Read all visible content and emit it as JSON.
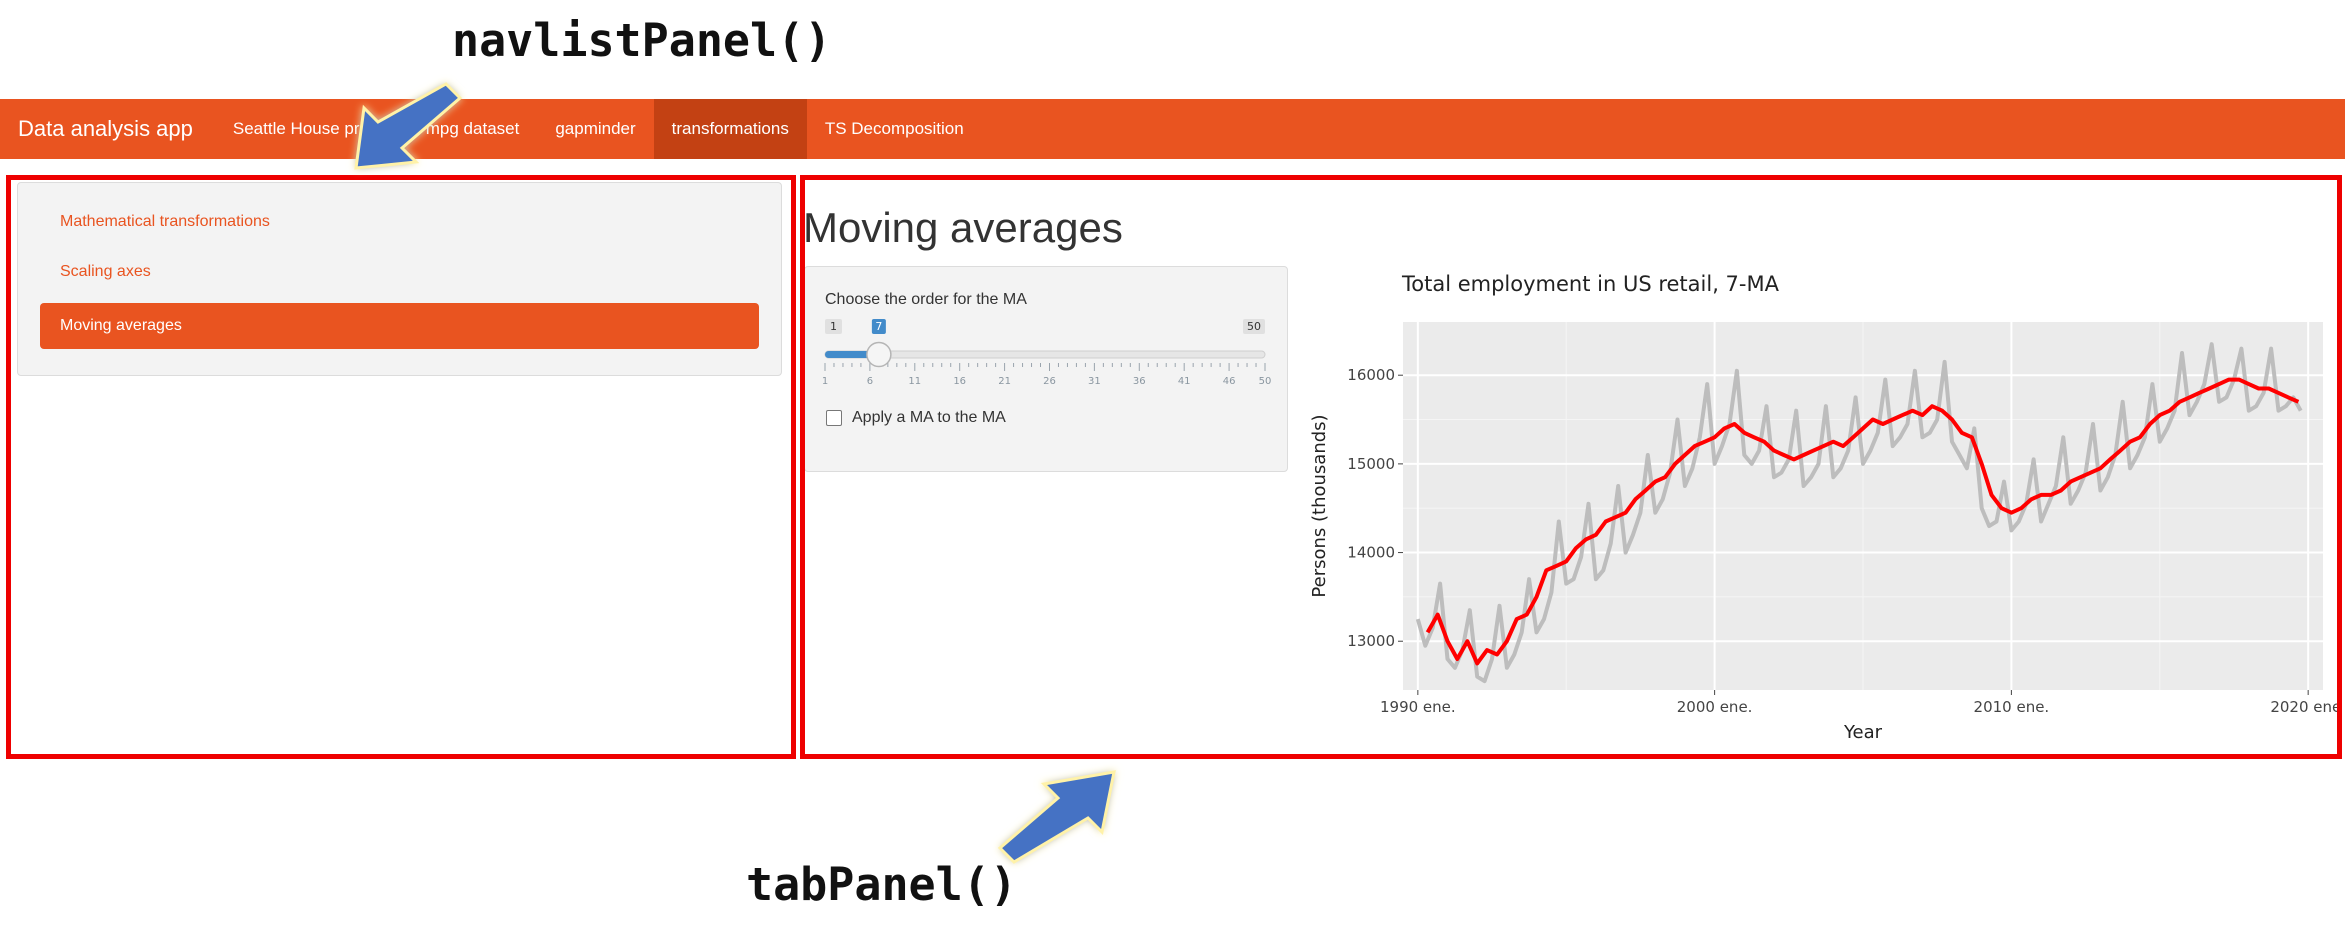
{
  "annotations": {
    "navlist_label": "navlistPanel()",
    "tabpanel_label": "tabPanel()"
  },
  "navbar": {
    "brand": "Data analysis app",
    "items": [
      {
        "label": "Seattle House prices",
        "active": false
      },
      {
        "label": "mpg dataset",
        "active": false
      },
      {
        "label": "gapminder",
        "active": false
      },
      {
        "label": "transformations",
        "active": true
      },
      {
        "label": "TS Decomposition",
        "active": false
      }
    ]
  },
  "navlist": {
    "items": [
      {
        "label": "Mathematical transformations",
        "active": false
      },
      {
        "label": "Scaling axes",
        "active": false
      },
      {
        "label": "Moving averages",
        "active": true
      }
    ]
  },
  "tab": {
    "title": "Moving averages",
    "slider": {
      "label": "Choose the order for the MA",
      "min": 1,
      "max": 50,
      "value": 7,
      "min_label": "1",
      "max_label": "50",
      "value_label": "7",
      "ticks": [
        "1",
        "6",
        "11",
        "16",
        "21",
        "26",
        "31",
        "36",
        "41",
        "46",
        "50"
      ]
    },
    "checkbox": {
      "label": "Apply a MA to the MA",
      "checked": false
    }
  },
  "colors": {
    "brand": "#e95420",
    "active_nav": "#c34113",
    "annotation_box": "#ee0000",
    "arrow": "#4472c4",
    "raw_series": "#bdbdbd",
    "ma_series": "#ff0000",
    "slider": "#428bca"
  },
  "chart_data": {
    "type": "line",
    "title": "Total employment in US retail, 7-MA",
    "xlabel": "Year",
    "ylabel": "Persons (thousands)",
    "xlim": [
      1989.5,
      2020.5
    ],
    "ylim": [
      12450,
      16600
    ],
    "x_ticks": [
      1990,
      2000,
      2010,
      2020
    ],
    "x_tick_labels": [
      "1990 ene.",
      "2000 ene.",
      "2010 ene.",
      "2020 ene."
    ],
    "y_ticks": [
      13000,
      14000,
      15000,
      16000
    ],
    "grid": true,
    "legend": "none",
    "series": [
      {
        "role": "raw",
        "x": [
          1990.0,
          1990.25,
          1990.5,
          1990.75,
          1991.0,
          1991.25,
          1991.5,
          1991.75,
          1992.0,
          1992.25,
          1992.5,
          1992.75,
          1993.0,
          1993.25,
          1993.5,
          1993.75,
          1994.0,
          1994.25,
          1994.5,
          1994.75,
          1995.0,
          1995.25,
          1995.5,
          1995.75,
          1996.0,
          1996.25,
          1996.5,
          1996.75,
          1997.0,
          1997.25,
          1997.5,
          1997.75,
          1998.0,
          1998.25,
          1998.5,
          1998.75,
          1999.0,
          1999.25,
          1999.5,
          1999.75,
          2000.0,
          2000.25,
          2000.5,
          2000.75,
          2001.0,
          2001.25,
          2001.5,
          2001.75,
          2002.0,
          2002.25,
          2002.5,
          2002.75,
          2003.0,
          2003.25,
          2003.5,
          2003.75,
          2004.0,
          2004.25,
          2004.5,
          2004.75,
          2005.0,
          2005.25,
          2005.5,
          2005.75,
          2006.0,
          2006.25,
          2006.5,
          2006.75,
          2007.0,
          2007.25,
          2007.5,
          2007.75,
          2008.0,
          2008.25,
          2008.5,
          2008.75,
          2009.0,
          2009.25,
          2009.5,
          2009.75,
          2010.0,
          2010.25,
          2010.5,
          2010.75,
          2011.0,
          2011.25,
          2011.5,
          2011.75,
          2012.0,
          2012.25,
          2012.5,
          2012.75,
          2013.0,
          2013.25,
          2013.5,
          2013.75,
          2014.0,
          2014.25,
          2014.5,
          2014.75,
          2015.0,
          2015.25,
          2015.5,
          2015.75,
          2016.0,
          2016.25,
          2016.5,
          2016.75,
          2017.0,
          2017.25,
          2017.5,
          2017.75,
          2018.0,
          2018.25,
          2018.5,
          2018.75,
          2019.0,
          2019.25,
          2019.5,
          2019.75
        ],
        "y": [
          13250,
          12950,
          13150,
          13650,
          12800,
          12700,
          12900,
          13350,
          12600,
          12550,
          12800,
          13400,
          12700,
          12850,
          13100,
          13700,
          13100,
          13250,
          13550,
          14350,
          13650,
          13700,
          13950,
          14550,
          13700,
          13800,
          14100,
          14750,
          14000,
          14200,
          14450,
          15100,
          14450,
          14600,
          14900,
          15500,
          14750,
          14950,
          15300,
          15900,
          15000,
          15200,
          15450,
          16050,
          15100,
          15000,
          15150,
          15650,
          14850,
          14900,
          15050,
          15600,
          14750,
          14850,
          15000,
          15650,
          14850,
          14950,
          15150,
          15750,
          15000,
          15150,
          15350,
          15950,
          15200,
          15300,
          15450,
          16050,
          15300,
          15350,
          15500,
          16150,
          15250,
          15100,
          14950,
          15400,
          14500,
          14300,
          14350,
          14800,
          14250,
          14350,
          14550,
          15050,
          14350,
          14550,
          14750,
          15300,
          14550,
          14700,
          14900,
          15450,
          14700,
          14850,
          15100,
          15700,
          14950,
          15100,
          15300,
          15900,
          15250,
          15400,
          15600,
          16250,
          15550,
          15700,
          15900,
          16350,
          15700,
          15750,
          15950,
          16300,
          15600,
          15650,
          15800,
          16300,
          15600,
          15650,
          15750,
          15600
        ]
      },
      {
        "role": "ma",
        "x": [
          1990.33,
          1990.67,
          1991.0,
          1991.33,
          1991.67,
          1992.0,
          1992.33,
          1992.67,
          1993.0,
          1993.33,
          1993.67,
          1994.0,
          1994.33,
          1994.67,
          1995.0,
          1995.33,
          1995.67,
          1996.0,
          1996.33,
          1996.67,
          1997.0,
          1997.33,
          1997.67,
          1998.0,
          1998.33,
          1998.67,
          1999.0,
          1999.33,
          1999.67,
          2000.0,
          2000.33,
          2000.67,
          2001.0,
          2001.33,
          2001.67,
          2002.0,
          2002.33,
          2002.67,
          2003.0,
          2003.33,
          2003.67,
          2004.0,
          2004.33,
          2004.67,
          2005.0,
          2005.33,
          2005.67,
          2006.0,
          2006.33,
          2006.67,
          2007.0,
          2007.33,
          2007.67,
          2008.0,
          2008.33,
          2008.67,
          2009.0,
          2009.33,
          2009.67,
          2010.0,
          2010.33,
          2010.67,
          2011.0,
          2011.33,
          2011.67,
          2012.0,
          2012.33,
          2012.67,
          2013.0,
          2013.33,
          2013.67,
          2014.0,
          2014.33,
          2014.67,
          2015.0,
          2015.33,
          2015.67,
          2016.0,
          2016.33,
          2016.67,
          2017.0,
          2017.33,
          2017.67,
          2018.0,
          2018.33,
          2018.67,
          2019.0,
          2019.33,
          2019.67
        ],
        "y": [
          13100,
          13300,
          13000,
          12800,
          13000,
          12750,
          12900,
          12850,
          13000,
          13250,
          13300,
          13500,
          13800,
          13850,
          13900,
          14050,
          14150,
          14200,
          14350,
          14400,
          14450,
          14600,
          14700,
          14800,
          14850,
          15000,
          15100,
          15200,
          15250,
          15300,
          15400,
          15450,
          15350,
          15300,
          15250,
          15150,
          15100,
          15050,
          15100,
          15150,
          15200,
          15250,
          15200,
          15300,
          15400,
          15500,
          15450,
          15500,
          15550,
          15600,
          15550,
          15650,
          15600,
          15500,
          15350,
          15300,
          15000,
          14650,
          14500,
          14450,
          14500,
          14600,
          14650,
          14650,
          14700,
          14800,
          14850,
          14900,
          14950,
          15050,
          15150,
          15250,
          15300,
          15450,
          15550,
          15600,
          15700,
          15750,
          15800,
          15850,
          15900,
          15950,
          15950,
          15900,
          15850,
          15850,
          15800,
          15750,
          15700
        ]
      }
    ]
  }
}
